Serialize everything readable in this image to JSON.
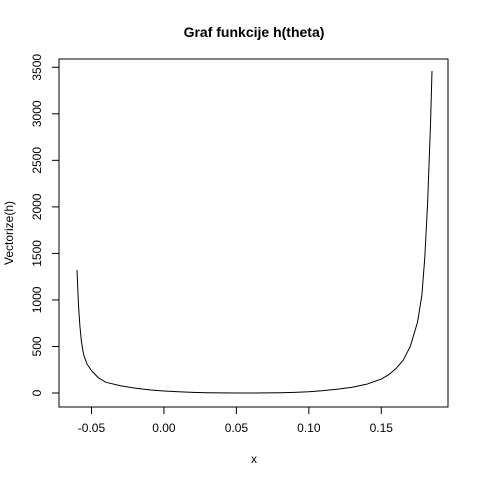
{
  "chart_data": {
    "type": "line",
    "title": "Graf funkcije h(theta)",
    "xlabel": "x",
    "ylabel": "Vectorize(h)",
    "xlim": [
      -0.06,
      0.185
    ],
    "ylim": [
      0,
      3460
    ],
    "grid": false,
    "x_ticks": [
      -0.05,
      0.0,
      0.05,
      0.1,
      0.15
    ],
    "x_tick_labels": [
      "-0.05",
      "0.00",
      "0.05",
      "0.10",
      "0.15"
    ],
    "y_ticks": [
      0,
      500,
      1000,
      1500,
      2000,
      2500,
      3000,
      3500
    ],
    "y_tick_labels": [
      "0",
      "500",
      "1000",
      "1500",
      "2000",
      "2500",
      "3000",
      "3500"
    ],
    "series": [
      {
        "color": "#000000",
        "x": [
          -0.06,
          -0.059,
          -0.058,
          -0.057,
          -0.056,
          -0.055,
          -0.053,
          -0.05,
          -0.045,
          -0.04,
          -0.03,
          -0.02,
          -0.01,
          0.0,
          0.01,
          0.02,
          0.03,
          0.04,
          0.05,
          0.06,
          0.07,
          0.08,
          0.09,
          0.1,
          0.11,
          0.12,
          0.13,
          0.14,
          0.15,
          0.155,
          0.16,
          0.165,
          0.17,
          0.175,
          0.178,
          0.18,
          0.182,
          0.184,
          0.185
        ],
        "y": [
          1320,
          950,
          720,
          560,
          460,
          390,
          310,
          240,
          160,
          115,
          78,
          52,
          33,
          22,
          13,
          7,
          3,
          1,
          0,
          0,
          1,
          3,
          7,
          14,
          26,
          42,
          62,
          95,
          150,
          195,
          260,
          350,
          500,
          760,
          1050,
          1450,
          2050,
          2900,
          3460
        ]
      }
    ]
  }
}
